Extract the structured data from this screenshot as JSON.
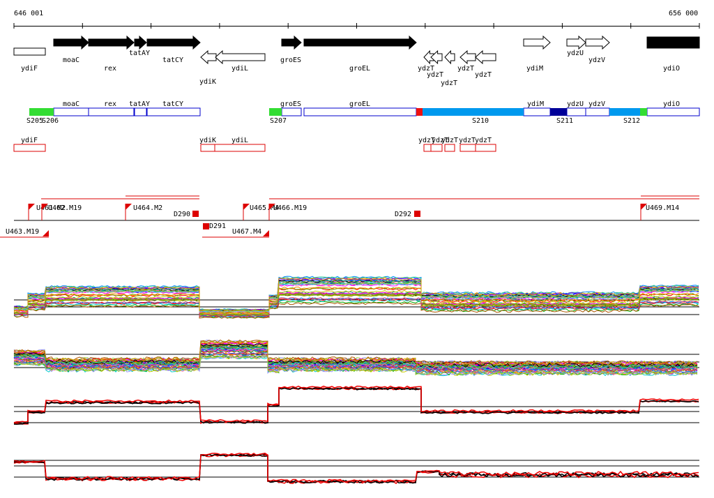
{
  "coords": {
    "start_label": "646 001",
    "end_label": "656 000"
  },
  "genes_top": [
    {
      "label": "ydiF",
      "strand": "+",
      "style": "open"
    },
    {
      "label": "moaC",
      "strand": "+",
      "style": "filled"
    },
    {
      "label": "rex",
      "strand": "+",
      "style": "filled"
    },
    {
      "label": "tatAY",
      "strand": "+",
      "style": "filled"
    },
    {
      "label": "tatCY",
      "strand": "+",
      "style": "filled"
    },
    {
      "label": "ydiK",
      "strand": "-",
      "style": "open"
    },
    {
      "label": "ydiL",
      "strand": "-",
      "style": "open"
    },
    {
      "label": "groES",
      "strand": "+",
      "style": "filled"
    },
    {
      "label": "groEL",
      "strand": "+",
      "style": "filled"
    },
    {
      "label": "ydzT",
      "strand": "-",
      "style": "open"
    },
    {
      "label": "ydzT",
      "strand": "-",
      "style": "open"
    },
    {
      "label": "ydzT",
      "strand": "-",
      "style": "open"
    },
    {
      "label": "ydzT",
      "strand": "-",
      "style": "open"
    },
    {
      "label": "ydzT",
      "strand": "-",
      "style": "open"
    },
    {
      "label": "ydiM",
      "strand": "+",
      "style": "open"
    },
    {
      "label": "ydzU",
      "strand": "+",
      "style": "open"
    },
    {
      "label": "ydzV",
      "strand": "+",
      "style": "open"
    },
    {
      "label": "ydiO",
      "strand": "+",
      "style": "filled"
    }
  ],
  "segment_track": {
    "genes": [
      "moaC",
      "rex",
      "tatAY",
      "tatCY",
      "groES",
      "groEL",
      "ydiM",
      "ydzU",
      "ydzV",
      "ydiO"
    ],
    "segments": [
      "S205",
      "S206",
      "S207",
      "S210",
      "S211",
      "S212"
    ]
  },
  "red_genes": [
    "ydiF",
    "ydiK",
    "ydiL",
    "ydzT",
    "ydzT",
    "ydzT",
    "ydzT",
    "ydzT"
  ],
  "tss": {
    "up": [
      "U461.M2",
      "U462.M19",
      "U464.M2",
      "U465.M4",
      "U466.M19",
      "U469.M14"
    ],
    "down": [
      "U463.M19",
      "U467.M4"
    ],
    "down_features": [
      "D290",
      "D291",
      "D292"
    ]
  },
  "colors": {
    "filled_gene": "#000000",
    "gene_box": "#0000cc",
    "segment_green": "#33dd33",
    "segment_blue": "#0099ee",
    "segment_navy": "#000099",
    "segment_red": "#ee1111",
    "annotation_red": "#dd0000"
  }
}
